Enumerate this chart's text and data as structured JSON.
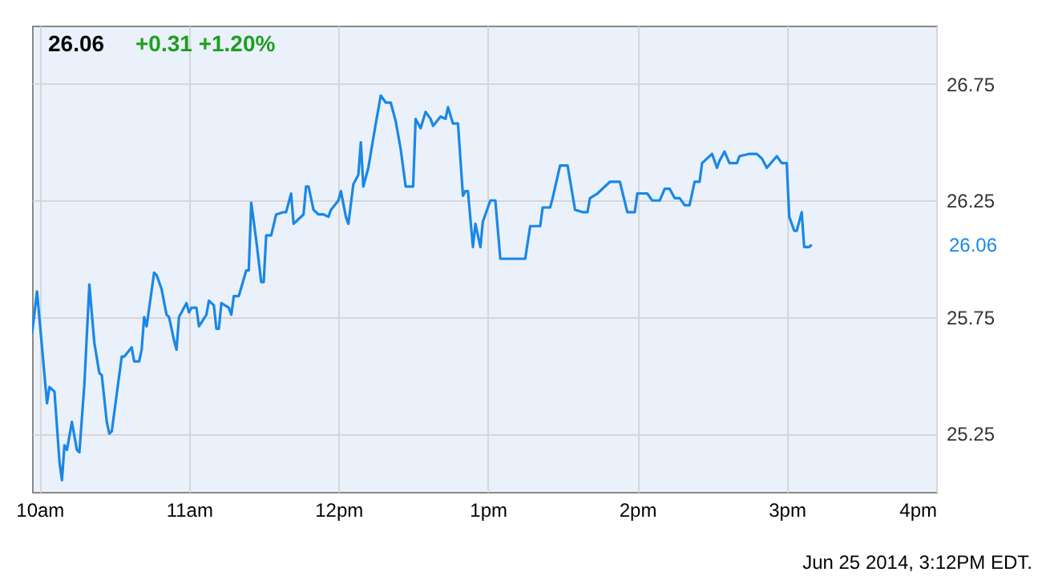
{
  "chart_data": {
    "type": "line",
    "title": "26.06",
    "subtitle": "+0.31 +1.20%",
    "x": [
      "2014-06-25T09:57",
      "2014-06-25T09:59",
      "2014-06-25T10:03",
      "2014-06-25T10:04",
      "2014-06-25T10:06",
      "2014-06-25T10:08",
      "2014-06-25T10:09",
      "2014-06-25T10:10",
      "2014-06-25T10:11",
      "2014-06-25T10:13",
      "2014-06-25T10:15",
      "2014-06-25T10:16",
      "2014-06-25T10:18",
      "2014-06-25T10:20",
      "2014-06-25T10:22",
      "2014-06-25T10:24",
      "2014-06-25T10:25",
      "2014-06-25T10:27",
      "2014-06-25T10:28",
      "2014-06-25T10:29",
      "2014-06-25T10:31",
      "2014-06-25T10:33",
      "2014-06-25T10:34",
      "2014-06-25T10:37",
      "2014-06-25T10:38",
      "2014-06-25T10:40",
      "2014-06-25T10:41",
      "2014-06-25T10:42",
      "2014-06-25T10:43",
      "2014-06-25T10:46",
      "2014-06-25T10:47",
      "2014-06-25T10:49",
      "2014-06-25T10:51",
      "2014-06-25T10:52",
      "2014-06-25T10:54",
      "2014-06-25T10:55",
      "2014-06-25T10:56",
      "2014-06-25T10:59",
      "2014-06-25T11:00",
      "2014-06-25T11:01",
      "2014-06-25T11:03",
      "2014-06-25T11:04",
      "2014-06-25T11:07",
      "2014-06-25T11:08",
      "2014-06-25T11:10",
      "2014-06-25T11:11",
      "2014-06-25T11:12",
      "2014-06-25T11:13",
      "2014-06-25T11:16",
      "2014-06-25T11:17",
      "2014-06-25T11:18",
      "2014-06-25T11:20",
      "2014-06-25T11:23",
      "2014-06-25T11:24",
      "2014-06-25T11:25",
      "2014-06-25T11:27",
      "2014-06-25T11:29",
      "2014-06-25T11:30",
      "2014-06-25T11:31",
      "2014-06-25T11:33",
      "2014-06-25T11:35",
      "2014-06-25T11:38",
      "2014-06-25T11:39",
      "2014-06-25T11:41",
      "2014-06-25T11:42",
      "2014-06-25T11:44",
      "2014-06-25T11:46",
      "2014-06-25T11:47",
      "2014-06-25T11:48",
      "2014-06-25T11:50",
      "2014-06-25T11:52",
      "2014-06-25T11:54",
      "2014-06-25T11:56",
      "2014-06-25T11:57",
      "2014-06-25T12:00",
      "2014-06-25T12:01",
      "2014-06-25T12:03",
      "2014-06-25T12:04",
      "2014-06-25T12:06",
      "2014-06-25T12:08",
      "2014-06-25T12:09",
      "2014-06-25T12:10",
      "2014-06-25T12:12",
      "2014-06-25T12:15",
      "2014-06-25T12:17",
      "2014-06-25T12:19",
      "2014-06-25T12:21",
      "2014-06-25T12:23",
      "2014-06-25T12:25",
      "2014-06-25T12:27",
      "2014-06-25T12:30",
      "2014-06-25T12:31",
      "2014-06-25T12:33",
      "2014-06-25T12:35",
      "2014-06-25T12:37",
      "2014-06-25T12:38",
      "2014-06-25T12:41",
      "2014-06-25T12:43",
      "2014-06-25T12:44",
      "2014-06-25T12:46",
      "2014-06-25T12:48",
      "2014-06-25T12:50",
      "2014-06-25T12:51",
      "2014-06-25T12:52",
      "2014-06-25T12:54",
      "2014-06-25T12:55",
      "2014-06-25T12:57",
      "2014-06-25T12:58",
      "2014-06-25T13:01",
      "2014-06-25T13:03",
      "2014-06-25T13:05",
      "2014-06-25T13:15",
      "2014-06-25T13:17",
      "2014-06-25T13:21",
      "2014-06-25T13:22",
      "2014-06-25T13:25",
      "2014-06-25T13:26",
      "2014-06-25T13:29",
      "2014-06-25T13:32",
      "2014-06-25T13:35",
      "2014-06-25T13:38",
      "2014-06-25T13:40",
      "2014-06-25T13:41",
      "2014-06-25T13:44",
      "2014-06-25T13:47",
      "2014-06-25T13:49",
      "2014-06-25T13:53",
      "2014-06-25T13:56",
      "2014-06-25T13:59",
      "2014-06-25T14:00",
      "2014-06-25T14:04",
      "2014-06-25T14:06",
      "2014-06-25T14:09",
      "2014-06-25T14:11",
      "2014-06-25T14:13",
      "2014-06-25T14:15",
      "2014-06-25T14:17",
      "2014-06-25T14:19",
      "2014-06-25T14:21",
      "2014-06-25T14:23",
      "2014-06-25T14:25",
      "2014-06-25T14:26",
      "2014-06-25T14:30",
      "2014-06-25T14:32",
      "2014-06-25T14:33",
      "2014-06-25T14:35",
      "2014-06-25T14:37",
      "2014-06-25T14:40",
      "2014-06-25T14:41",
      "2014-06-25T14:45",
      "2014-06-25T14:48",
      "2014-06-25T14:50",
      "2014-06-25T14:52",
      "2014-06-25T14:56",
      "2014-06-25T14:58",
      "2014-06-25T15:00",
      "2014-06-25T15:01",
      "2014-06-25T15:03",
      "2014-06-25T15:04",
      "2014-06-25T15:06",
      "2014-06-25T15:07",
      "2014-06-25T15:09",
      "2014-06-25T15:10"
    ],
    "series": [
      {
        "color": "#1a87e6",
        "values": [
          25.68,
          25.86,
          25.38,
          25.45,
          25.43,
          25.13,
          25.05,
          25.2,
          25.18,
          25.3,
          25.18,
          25.17,
          25.46,
          25.89,
          25.64,
          25.51,
          25.5,
          25.3,
          25.25,
          25.26,
          25.42,
          25.58,
          25.58,
          25.62,
          25.56,
          25.56,
          25.61,
          25.75,
          25.71,
          25.94,
          25.93,
          25.87,
          25.76,
          25.75,
          25.65,
          25.61,
          25.75,
          25.81,
          25.77,
          25.79,
          25.79,
          25.71,
          25.76,
          25.82,
          25.8,
          25.7,
          25.7,
          25.81,
          25.79,
          25.76,
          25.84,
          25.84,
          25.95,
          25.95,
          26.24,
          26.08,
          25.9,
          25.9,
          26.1,
          26.1,
          26.19,
          26.2,
          26.2,
          26.28,
          26.15,
          26.17,
          26.19,
          26.31,
          26.31,
          26.21,
          26.19,
          26.19,
          26.18,
          26.21,
          26.25,
          26.29,
          26.18,
          26.15,
          26.32,
          26.36,
          26.5,
          26.31,
          26.39,
          26.58,
          26.7,
          26.67,
          26.67,
          26.59,
          26.47,
          26.31,
          26.31,
          26.6,
          26.56,
          26.63,
          26.6,
          26.57,
          26.61,
          26.6,
          26.65,
          26.58,
          26.58,
          26.27,
          26.29,
          26.29,
          26.05,
          26.15,
          26.05,
          26.16,
          26.25,
          26.25,
          26.0,
          26.0,
          26.14,
          26.14,
          26.22,
          26.22,
          26.26,
          26.4,
          26.4,
          26.21,
          26.2,
          26.2,
          26.26,
          26.28,
          26.31,
          26.33,
          26.33,
          26.2,
          26.2,
          26.28,
          26.28,
          26.25,
          26.25,
          26.3,
          26.3,
          26.26,
          26.26,
          26.23,
          26.23,
          26.33,
          26.33,
          26.41,
          26.45,
          26.39,
          26.42,
          26.46,
          26.41,
          26.41,
          26.44,
          26.45,
          26.45,
          26.43,
          26.39,
          26.44,
          26.41,
          26.41,
          26.18,
          26.12,
          26.12,
          26.2,
          26.05,
          26.05,
          26.06
        ]
      }
    ],
    "xlim": [
      "2014-06-25T09:57",
      "2014-06-25T16:00"
    ],
    "xticks": [
      {
        "value": "2014-06-25T10:00",
        "label": "10am"
      },
      {
        "value": "2014-06-25T11:00",
        "label": "11am"
      },
      {
        "value": "2014-06-25T12:00",
        "label": "12pm"
      },
      {
        "value": "2014-06-25T13:00",
        "label": "1pm"
      },
      {
        "value": "2014-06-25T14:00",
        "label": "2pm"
      },
      {
        "value": "2014-06-25T15:00",
        "label": "3pm"
      },
      {
        "value": "2014-06-25T16:00",
        "label": "4pm"
      }
    ],
    "ylim": [
      25.0,
      27.0
    ],
    "yticks": [
      {
        "value": 25.25,
        "label": "25.25"
      },
      {
        "value": 25.75,
        "label": "25.75"
      },
      {
        "value": 26.25,
        "label": "26.25"
      },
      {
        "value": 26.75,
        "label": "26.75"
      }
    ],
    "grid": true,
    "marker": "none",
    "line_style": "solid",
    "annotations": [
      "26.06",
      "Jun 25 2014, 3:12PM EDT."
    ]
  }
}
